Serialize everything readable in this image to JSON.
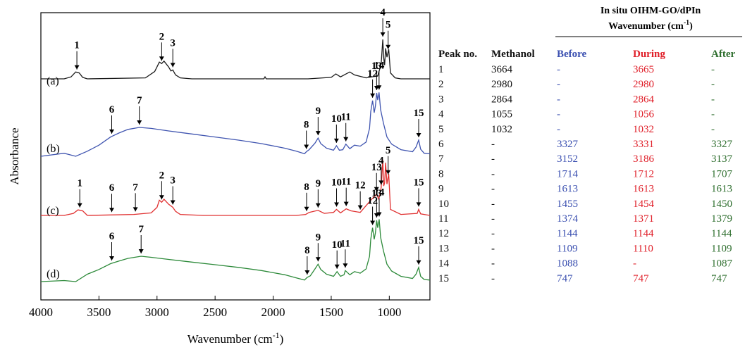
{
  "chart_data": {
    "type": "line",
    "xlabel": "Wavenumber (cm",
    "xlabel_sup": "-1",
    "xlabel_close": ")",
    "ylabel": "Absorbance",
    "xlim": [
      4000,
      650
    ],
    "x_ticks": [
      4000,
      3500,
      3000,
      2500,
      2000,
      1500,
      1000
    ],
    "y_ticks_shown": false,
    "grid": false,
    "series": [
      {
        "name": "(a)",
        "color": "#1a1a1a",
        "baseline": 0,
        "points": [
          [
            4000,
            0
          ],
          [
            3800,
            0
          ],
          [
            3740,
            4
          ],
          [
            3700,
            14
          ],
          [
            3670,
            12
          ],
          [
            3640,
            3
          ],
          [
            3600,
            0
          ],
          [
            3100,
            2
          ],
          [
            3020,
            15
          ],
          [
            2980,
            34
          ],
          [
            2960,
            31
          ],
          [
            2940,
            36
          ],
          [
            2900,
            24
          ],
          [
            2880,
            16
          ],
          [
            2864,
            18
          ],
          [
            2840,
            8
          ],
          [
            2800,
            2
          ],
          [
            2700,
            0
          ],
          [
            2300,
            0
          ],
          [
            2080,
            0
          ],
          [
            2070,
            4
          ],
          [
            2060,
            0
          ],
          [
            1700,
            0
          ],
          [
            1500,
            3
          ],
          [
            1460,
            10
          ],
          [
            1420,
            4
          ],
          [
            1380,
            9
          ],
          [
            1340,
            14
          ],
          [
            1300,
            8
          ],
          [
            1200,
            2
          ],
          [
            1100,
            6
          ],
          [
            1070,
            30
          ],
          [
            1056,
            80
          ],
          [
            1048,
            42
          ],
          [
            1040,
            28
          ],
          [
            1032,
            62
          ],
          [
            1020,
            44
          ],
          [
            1005,
            60
          ],
          [
            990,
            12
          ],
          [
            950,
            2
          ],
          [
            900,
            0
          ],
          [
            650,
            0
          ]
        ]
      },
      {
        "name": "(b)",
        "color": "#4055b0",
        "baseline": 0,
        "points": [
          [
            4000,
            0
          ],
          [
            3800,
            6
          ],
          [
            3700,
            0
          ],
          [
            3600,
            10
          ],
          [
            3500,
            22
          ],
          [
            3400,
            38
          ],
          [
            3327,
            46
          ],
          [
            3250,
            53
          ],
          [
            3152,
            57
          ],
          [
            3050,
            55
          ],
          [
            2900,
            50
          ],
          [
            2700,
            44
          ],
          [
            2500,
            38
          ],
          [
            2300,
            32
          ],
          [
            2100,
            25
          ],
          [
            1900,
            16
          ],
          [
            1800,
            10
          ],
          [
            1730,
            5
          ],
          [
            1714,
            9
          ],
          [
            1690,
            13
          ],
          [
            1640,
            26
          ],
          [
            1613,
            36
          ],
          [
            1590,
            25
          ],
          [
            1540,
            16
          ],
          [
            1480,
            12
          ],
          [
            1455,
            21
          ],
          [
            1430,
            12
          ],
          [
            1400,
            13
          ],
          [
            1374,
            24
          ],
          [
            1340,
            15
          ],
          [
            1300,
            22
          ],
          [
            1250,
            20
          ],
          [
            1200,
            28
          ],
          [
            1170,
            55
          ],
          [
            1160,
            88
          ],
          [
            1144,
            110
          ],
          [
            1130,
            86
          ],
          [
            1120,
            99
          ],
          [
            1109,
            125
          ],
          [
            1100,
            111
          ],
          [
            1088,
            126
          ],
          [
            1075,
            92
          ],
          [
            1050,
            65
          ],
          [
            1020,
            38
          ],
          [
            980,
            24
          ],
          [
            900,
            13
          ],
          [
            800,
            9
          ],
          [
            770,
            18
          ],
          [
            747,
            32
          ],
          [
            730,
            14
          ],
          [
            700,
            6
          ],
          [
            650,
            5
          ]
        ]
      },
      {
        "name": "(c)",
        "color": "#e03030",
        "baseline": 0,
        "points": [
          [
            4000,
            0
          ],
          [
            3800,
            0
          ],
          [
            3720,
            4
          ],
          [
            3680,
            11
          ],
          [
            3640,
            9
          ],
          [
            3600,
            0
          ],
          [
            3400,
            1
          ],
          [
            3200,
            2
          ],
          [
            3050,
            5
          ],
          [
            3000,
            16
          ],
          [
            2980,
            30
          ],
          [
            2960,
            26
          ],
          [
            2940,
            32
          ],
          [
            2900,
            22
          ],
          [
            2864,
            16
          ],
          [
            2840,
            8
          ],
          [
            2800,
            2
          ],
          [
            2600,
            0
          ],
          [
            2000,
            0
          ],
          [
            1800,
            0
          ],
          [
            1720,
            2
          ],
          [
            1690,
            6
          ],
          [
            1613,
            10
          ],
          [
            1560,
            4
          ],
          [
            1480,
            6
          ],
          [
            1455,
            12
          ],
          [
            1420,
            5
          ],
          [
            1371,
            13
          ],
          [
            1330,
            9
          ],
          [
            1250,
            6
          ],
          [
            1160,
            30
          ],
          [
            1110,
            42
          ],
          [
            1090,
            32
          ],
          [
            1070,
            55
          ],
          [
            1056,
            110
          ],
          [
            1048,
            58
          ],
          [
            1040,
            64
          ],
          [
            1032,
            104
          ],
          [
            1020,
            62
          ],
          [
            1005,
            82
          ],
          [
            990,
            12
          ],
          [
            900,
            2
          ],
          [
            760,
            4
          ],
          [
            747,
            12
          ],
          [
            730,
            3
          ],
          [
            650,
            0
          ]
        ]
      },
      {
        "name": "(d)",
        "color": "#2d8a3a",
        "baseline": 0,
        "points": [
          [
            4000,
            0
          ],
          [
            3800,
            2
          ],
          [
            3700,
            0
          ],
          [
            3600,
            14
          ],
          [
            3500,
            23
          ],
          [
            3400,
            34
          ],
          [
            3327,
            39
          ],
          [
            3250,
            44
          ],
          [
            3137,
            48
          ],
          [
            3050,
            46
          ],
          [
            2900,
            42
          ],
          [
            2700,
            37
          ],
          [
            2500,
            32
          ],
          [
            2300,
            27
          ],
          [
            2100,
            21
          ],
          [
            1900,
            13
          ],
          [
            1800,
            7
          ],
          [
            1730,
            3
          ],
          [
            1707,
            8
          ],
          [
            1680,
            11
          ],
          [
            1640,
            24
          ],
          [
            1613,
            33
          ],
          [
            1590,
            23
          ],
          [
            1540,
            14
          ],
          [
            1480,
            10
          ],
          [
            1450,
            19
          ],
          [
            1420,
            10
          ],
          [
            1390,
            13
          ],
          [
            1379,
            21
          ],
          [
            1340,
            13
          ],
          [
            1300,
            19
          ],
          [
            1250,
            16
          ],
          [
            1200,
            24
          ],
          [
            1170,
            48
          ],
          [
            1160,
            80
          ],
          [
            1144,
            102
          ],
          [
            1130,
            80
          ],
          [
            1120,
            92
          ],
          [
            1109,
            116
          ],
          [
            1100,
            102
          ],
          [
            1087,
            118
          ],
          [
            1075,
            84
          ],
          [
            1050,
            58
          ],
          [
            1020,
            33
          ],
          [
            980,
            20
          ],
          [
            900,
            10
          ],
          [
            800,
            6
          ],
          [
            770,
            14
          ],
          [
            747,
            27
          ],
          [
            730,
            10
          ],
          [
            700,
            4
          ],
          [
            650,
            3
          ]
        ]
      }
    ],
    "annotations": [
      {
        "series": 0,
        "label": "1",
        "x": 3690
      },
      {
        "series": 0,
        "label": "2",
        "x": 2960
      },
      {
        "series": 0,
        "label": "3",
        "x": 2864
      },
      {
        "series": 0,
        "label": "4",
        "x": 1056
      },
      {
        "series": 0,
        "label": "5",
        "x": 1010
      },
      {
        "series": 1,
        "label": "6",
        "x": 3390
      },
      {
        "series": 1,
        "label": "7",
        "x": 3152
      },
      {
        "series": 1,
        "label": "8",
        "x": 1714
      },
      {
        "series": 1,
        "label": "9",
        "x": 1613
      },
      {
        "series": 1,
        "label": "10",
        "x": 1455
      },
      {
        "series": 1,
        "label": "11",
        "x": 1374
      },
      {
        "series": 1,
        "label": "12",
        "x": 1144
      },
      {
        "series": 1,
        "label": "13",
        "x": 1109
      },
      {
        "series": 1,
        "label": "14",
        "x": 1088
      },
      {
        "series": 1,
        "label": "15",
        "x": 747
      },
      {
        "series": 2,
        "label": "1",
        "x": 3665
      },
      {
        "series": 2,
        "label": "6",
        "x": 3390
      },
      {
        "series": 2,
        "label": "7",
        "x": 3186
      },
      {
        "series": 2,
        "label": "2",
        "x": 2960
      },
      {
        "series": 2,
        "label": "3",
        "x": 2864
      },
      {
        "series": 2,
        "label": "8",
        "x": 1712
      },
      {
        "series": 2,
        "label": "9",
        "x": 1613
      },
      {
        "series": 2,
        "label": "10",
        "x": 1454
      },
      {
        "series": 2,
        "label": "11",
        "x": 1371
      },
      {
        "series": 2,
        "label": "12",
        "x": 1250
      },
      {
        "series": 2,
        "label": "13",
        "x": 1110
      },
      {
        "series": 2,
        "label": "4",
        "x": 1070
      },
      {
        "series": 2,
        "label": "5",
        "x": 1010
      },
      {
        "series": 2,
        "label": "15",
        "x": 747
      },
      {
        "series": 3,
        "label": "6",
        "x": 3390
      },
      {
        "series": 3,
        "label": "7",
        "x": 3137
      },
      {
        "series": 3,
        "label": "8",
        "x": 1707
      },
      {
        "series": 3,
        "label": "9",
        "x": 1613
      },
      {
        "series": 3,
        "label": "10",
        "x": 1450
      },
      {
        "series": 3,
        "label": "11",
        "x": 1379
      },
      {
        "series": 3,
        "label": "12",
        "x": 1144
      },
      {
        "series": 3,
        "label": "13",
        "x": 1109
      },
      {
        "series": 3,
        "label": "14",
        "x": 1087
      },
      {
        "series": 3,
        "label": "15",
        "x": 747
      }
    ]
  },
  "table": {
    "group_header_line1": "In situ OIHM-GO/dPIn",
    "group_header_line2": "Wavenumber (cm",
    "group_header_sup": "-1",
    "group_header_close": ")",
    "headers": [
      "Peak no.",
      "Methanol",
      "Before",
      "During",
      "After"
    ],
    "header_colors": [
      "#111111",
      "#111111",
      "#3a4fb0",
      "#e0202a",
      "#2e6e2e"
    ],
    "rows": [
      [
        "1",
        "3664",
        "-",
        "3665",
        "-"
      ],
      [
        "2",
        "2980",
        "-",
        "2980",
        "-"
      ],
      [
        "3",
        "2864",
        "-",
        "2864",
        "-"
      ],
      [
        "4",
        "1055",
        "-",
        "1056",
        "-"
      ],
      [
        "5",
        "1032",
        "-",
        "1032",
        "-"
      ],
      [
        "6",
        "-",
        "3327",
        "3331",
        "3327"
      ],
      [
        "7",
        "-",
        "3152",
        "3186",
        "3137"
      ],
      [
        "8",
        "-",
        "1714",
        "1712",
        "1707"
      ],
      [
        "9",
        "-",
        "1613",
        "1613",
        "1613"
      ],
      [
        "10",
        "-",
        "1455",
        "1454",
        "1450"
      ],
      [
        "11",
        "-",
        "1374",
        "1371",
        "1379"
      ],
      [
        "12",
        "-",
        "1144",
        "1144",
        "1144"
      ],
      [
        "13",
        "-",
        "1109",
        "1110",
        "1109"
      ],
      [
        "14",
        "-",
        "1088",
        "-",
        "1087"
      ],
      [
        "15",
        "-",
        "747",
        "747",
        "747"
      ]
    ]
  }
}
